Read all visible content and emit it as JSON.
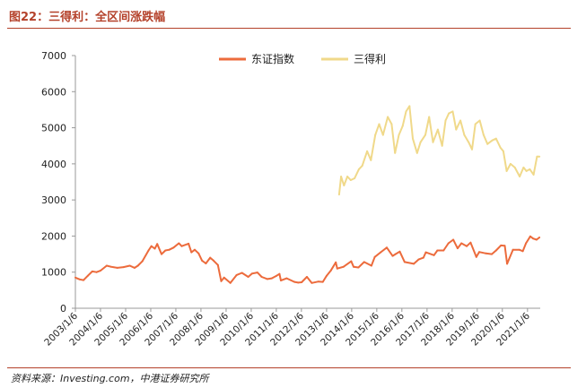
{
  "figure": {
    "title": "图22：三得利：全区间涨跌幅",
    "source": "资料来源：Investing.com，中港证券研究所"
  },
  "colors": {
    "title_accent": "#b4412a",
    "rule": "#b4412a",
    "series_dongzheng": "#ec6b3c",
    "series_suntory": "#f0d98a",
    "axis": "#999999"
  },
  "chart_data": {
    "type": "line",
    "title": "",
    "xlabel": "",
    "ylabel": "",
    "ylim": [
      0,
      7000
    ],
    "yticks": [
      0,
      1000,
      2000,
      3000,
      4000,
      5000,
      6000,
      7000
    ],
    "xticks": [
      "2003/1/6",
      "2004/1/6",
      "2005/1/6",
      "2006/1/6",
      "2007/1/6",
      "2008/1/6",
      "2009/1/6",
      "2010/1/6",
      "2011/1/6",
      "2012/1/6",
      "2013/1/6",
      "2014/1/6",
      "2015/1/6",
      "2016/1/6",
      "2017/1/6",
      "2018/1/6",
      "2019/1/6",
      "2020/1/6",
      "2021/1/6"
    ],
    "legend_position": "top-center",
    "grid": false,
    "series": [
      {
        "name": "东证指数",
        "color": "#ec6b3c",
        "points": [
          [
            "2003-01-06",
            850
          ],
          [
            "2003-03-10",
            800
          ],
          [
            "2003-05-05",
            780
          ],
          [
            "2003-07-07",
            900
          ],
          [
            "2003-09-08",
            1020
          ],
          [
            "2003-11-10",
            1000
          ],
          [
            "2004-01-05",
            1040
          ],
          [
            "2004-04-05",
            1180
          ],
          [
            "2004-06-07",
            1150
          ],
          [
            "2004-09-06",
            1120
          ],
          [
            "2004-12-06",
            1140
          ],
          [
            "2005-03-07",
            1180
          ],
          [
            "2005-05-16",
            1120
          ],
          [
            "2005-07-04",
            1180
          ],
          [
            "2005-09-05",
            1300
          ],
          [
            "2005-12-05",
            1600
          ],
          [
            "2006-01-16",
            1720
          ],
          [
            "2006-03-06",
            1650
          ],
          [
            "2006-04-10",
            1780
          ],
          [
            "2006-06-12",
            1500
          ],
          [
            "2006-08-07",
            1600
          ],
          [
            "2006-10-02",
            1620
          ],
          [
            "2006-12-04",
            1680
          ],
          [
            "2007-02-19",
            1800
          ],
          [
            "2007-04-02",
            1720
          ],
          [
            "2007-07-09",
            1790
          ],
          [
            "2007-08-20",
            1550
          ],
          [
            "2007-10-08",
            1620
          ],
          [
            "2007-12-03",
            1520
          ],
          [
            "2008-01-21",
            1320
          ],
          [
            "2008-03-17",
            1240
          ],
          [
            "2008-05-19",
            1400
          ],
          [
            "2008-07-07",
            1320
          ],
          [
            "2008-09-08",
            1200
          ],
          [
            "2008-10-27",
            750
          ],
          [
            "2008-12-08",
            850
          ],
          [
            "2009-03-09",
            700
          ],
          [
            "2009-06-08",
            920
          ],
          [
            "2009-08-24",
            980
          ],
          [
            "2009-11-23",
            870
          ],
          [
            "2010-01-18",
            960
          ],
          [
            "2010-04-05",
            990
          ],
          [
            "2010-06-07",
            870
          ],
          [
            "2010-08-30",
            810
          ],
          [
            "2010-11-01",
            830
          ],
          [
            "2011-01-10",
            900
          ],
          [
            "2011-02-21",
            950
          ],
          [
            "2011-03-14",
            770
          ],
          [
            "2011-06-06",
            830
          ],
          [
            "2011-09-26",
            730
          ],
          [
            "2011-11-21",
            710
          ],
          [
            "2012-01-09",
            720
          ],
          [
            "2012-03-26",
            870
          ],
          [
            "2012-06-04",
            700
          ],
          [
            "2012-09-10",
            740
          ],
          [
            "2012-11-12",
            730
          ],
          [
            "2013-01-07",
            900
          ],
          [
            "2013-03-11",
            1050
          ],
          [
            "2013-05-20",
            1270
          ],
          [
            "2013-06-10",
            1100
          ],
          [
            "2013-09-09",
            1150
          ],
          [
            "2013-12-30",
            1300
          ],
          [
            "2014-02-03",
            1150
          ],
          [
            "2014-04-14",
            1130
          ],
          [
            "2014-07-07",
            1280
          ],
          [
            "2014-10-20",
            1180
          ],
          [
            "2014-12-08",
            1420
          ],
          [
            "2015-03-02",
            1550
          ],
          [
            "2015-06-01",
            1680
          ],
          [
            "2015-08-24",
            1450
          ],
          [
            "2015-10-05",
            1500
          ],
          [
            "2015-12-07",
            1570
          ],
          [
            "2016-02-15",
            1280
          ],
          [
            "2016-06-27",
            1230
          ],
          [
            "2016-09-05",
            1350
          ],
          [
            "2016-11-14",
            1400
          ],
          [
            "2016-12-19",
            1550
          ],
          [
            "2017-04-17",
            1470
          ],
          [
            "2017-06-05",
            1600
          ],
          [
            "2017-09-04",
            1600
          ],
          [
            "2017-11-13",
            1800
          ],
          [
            "2018-01-22",
            1900
          ],
          [
            "2018-03-26",
            1660
          ],
          [
            "2018-05-21",
            1800
          ],
          [
            "2018-08-06",
            1720
          ],
          [
            "2018-10-01",
            1820
          ],
          [
            "2018-12-24",
            1420
          ],
          [
            "2019-02-04",
            1560
          ],
          [
            "2019-05-13",
            1520
          ],
          [
            "2019-08-05",
            1500
          ],
          [
            "2019-10-07",
            1600
          ],
          [
            "2019-12-16",
            1740
          ],
          [
            "2020-02-10",
            1730
          ],
          [
            "2020-03-16",
            1230
          ],
          [
            "2020-06-08",
            1620
          ],
          [
            "2020-09-07",
            1620
          ],
          [
            "2020-10-30",
            1580
          ],
          [
            "2020-12-14",
            1800
          ],
          [
            "2021-02-15",
            1990
          ],
          [
            "2021-03-29",
            1930
          ],
          [
            "2021-05-17",
            1900
          ],
          [
            "2021-06-28",
            1960
          ]
        ]
      },
      {
        "name": "三得利",
        "color": "#f0d98a",
        "points": [
          [
            "2013-07-08",
            3150
          ],
          [
            "2013-08-05",
            3650
          ],
          [
            "2013-09-16",
            3400
          ],
          [
            "2013-11-04",
            3650
          ],
          [
            "2013-12-23",
            3550
          ],
          [
            "2014-02-17",
            3600
          ],
          [
            "2014-04-21",
            3850
          ],
          [
            "2014-06-09",
            3950
          ],
          [
            "2014-08-18",
            4350
          ],
          [
            "2014-10-13",
            4100
          ],
          [
            "2014-12-15",
            4800
          ],
          [
            "2015-02-09",
            5100
          ],
          [
            "2015-04-06",
            4800
          ],
          [
            "2015-06-15",
            5300
          ],
          [
            "2015-08-10",
            5100
          ],
          [
            "2015-09-28",
            4300
          ],
          [
            "2015-11-23",
            4800
          ],
          [
            "2016-01-18",
            5050
          ],
          [
            "2016-03-07",
            5450
          ],
          [
            "2016-04-25",
            5600
          ],
          [
            "2016-06-13",
            4700
          ],
          [
            "2016-08-15",
            4300
          ],
          [
            "2016-10-03",
            4600
          ],
          [
            "2016-12-12",
            4800
          ],
          [
            "2017-02-06",
            5300
          ],
          [
            "2017-04-03",
            4600
          ],
          [
            "2017-06-12",
            4950
          ],
          [
            "2017-08-14",
            4500
          ],
          [
            "2017-10-02",
            5200
          ],
          [
            "2017-11-20",
            5400
          ],
          [
            "2018-01-15",
            5450
          ],
          [
            "2018-03-05",
            4950
          ],
          [
            "2018-05-07",
            5200
          ],
          [
            "2018-07-02",
            4800
          ],
          [
            "2018-09-03",
            4600
          ],
          [
            "2018-10-22",
            4400
          ],
          [
            "2018-12-10",
            5100
          ],
          [
            "2019-02-11",
            5200
          ],
          [
            "2019-04-08",
            4800
          ],
          [
            "2019-06-03",
            4550
          ],
          [
            "2019-08-12",
            4650
          ],
          [
            "2019-10-07",
            4700
          ],
          [
            "2019-12-09",
            4450
          ],
          [
            "2020-01-20",
            4350
          ],
          [
            "2020-03-09",
            3800
          ],
          [
            "2020-05-04",
            4000
          ],
          [
            "2020-07-06",
            3900
          ],
          [
            "2020-09-14",
            3650
          ],
          [
            "2020-11-09",
            3900
          ],
          [
            "2020-12-21",
            3800
          ],
          [
            "2021-02-08",
            3850
          ],
          [
            "2021-04-05",
            3700
          ],
          [
            "2021-05-24",
            4200
          ],
          [
            "2021-06-28",
            4200
          ]
        ]
      }
    ]
  }
}
